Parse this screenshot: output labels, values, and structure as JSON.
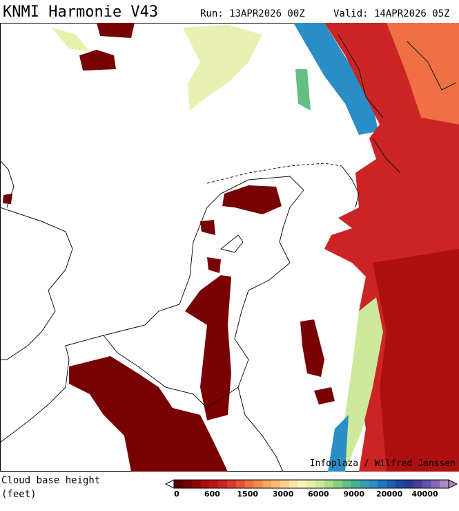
{
  "header": {
    "title": "KNMI Harmonie V43",
    "run": "Run: 13APR2026 00Z",
    "valid": "Valid: 14APR2026 05Z"
  },
  "credit": "Infoplaza / Wilfred Janssen",
  "legend": {
    "label_lines": [
      "Cloud base height",
      "(feet)"
    ],
    "ticks": [
      0,
      600,
      1500,
      3000,
      6000,
      9000,
      20000,
      40000
    ],
    "colors": [
      "#5a0000",
      "#780000",
      "#900404",
      "#a80c0c",
      "#bc1818",
      "#cc2424",
      "#da3a2e",
      "#e55436",
      "#ee7044",
      "#f38c4e",
      "#f7a65c",
      "#fabc72",
      "#fcd08c",
      "#fde4a8",
      "#f6f2b8",
      "#e6f0aa",
      "#cdea9c",
      "#addf8c",
      "#88cf80",
      "#62c082",
      "#44b092",
      "#32a0b2",
      "#2a8ec6",
      "#2276c0",
      "#1a60b2",
      "#1a4aa2",
      "#283a92",
      "#463c98",
      "#6650a8",
      "#8668b8",
      "#a888c8"
    ]
  }
}
